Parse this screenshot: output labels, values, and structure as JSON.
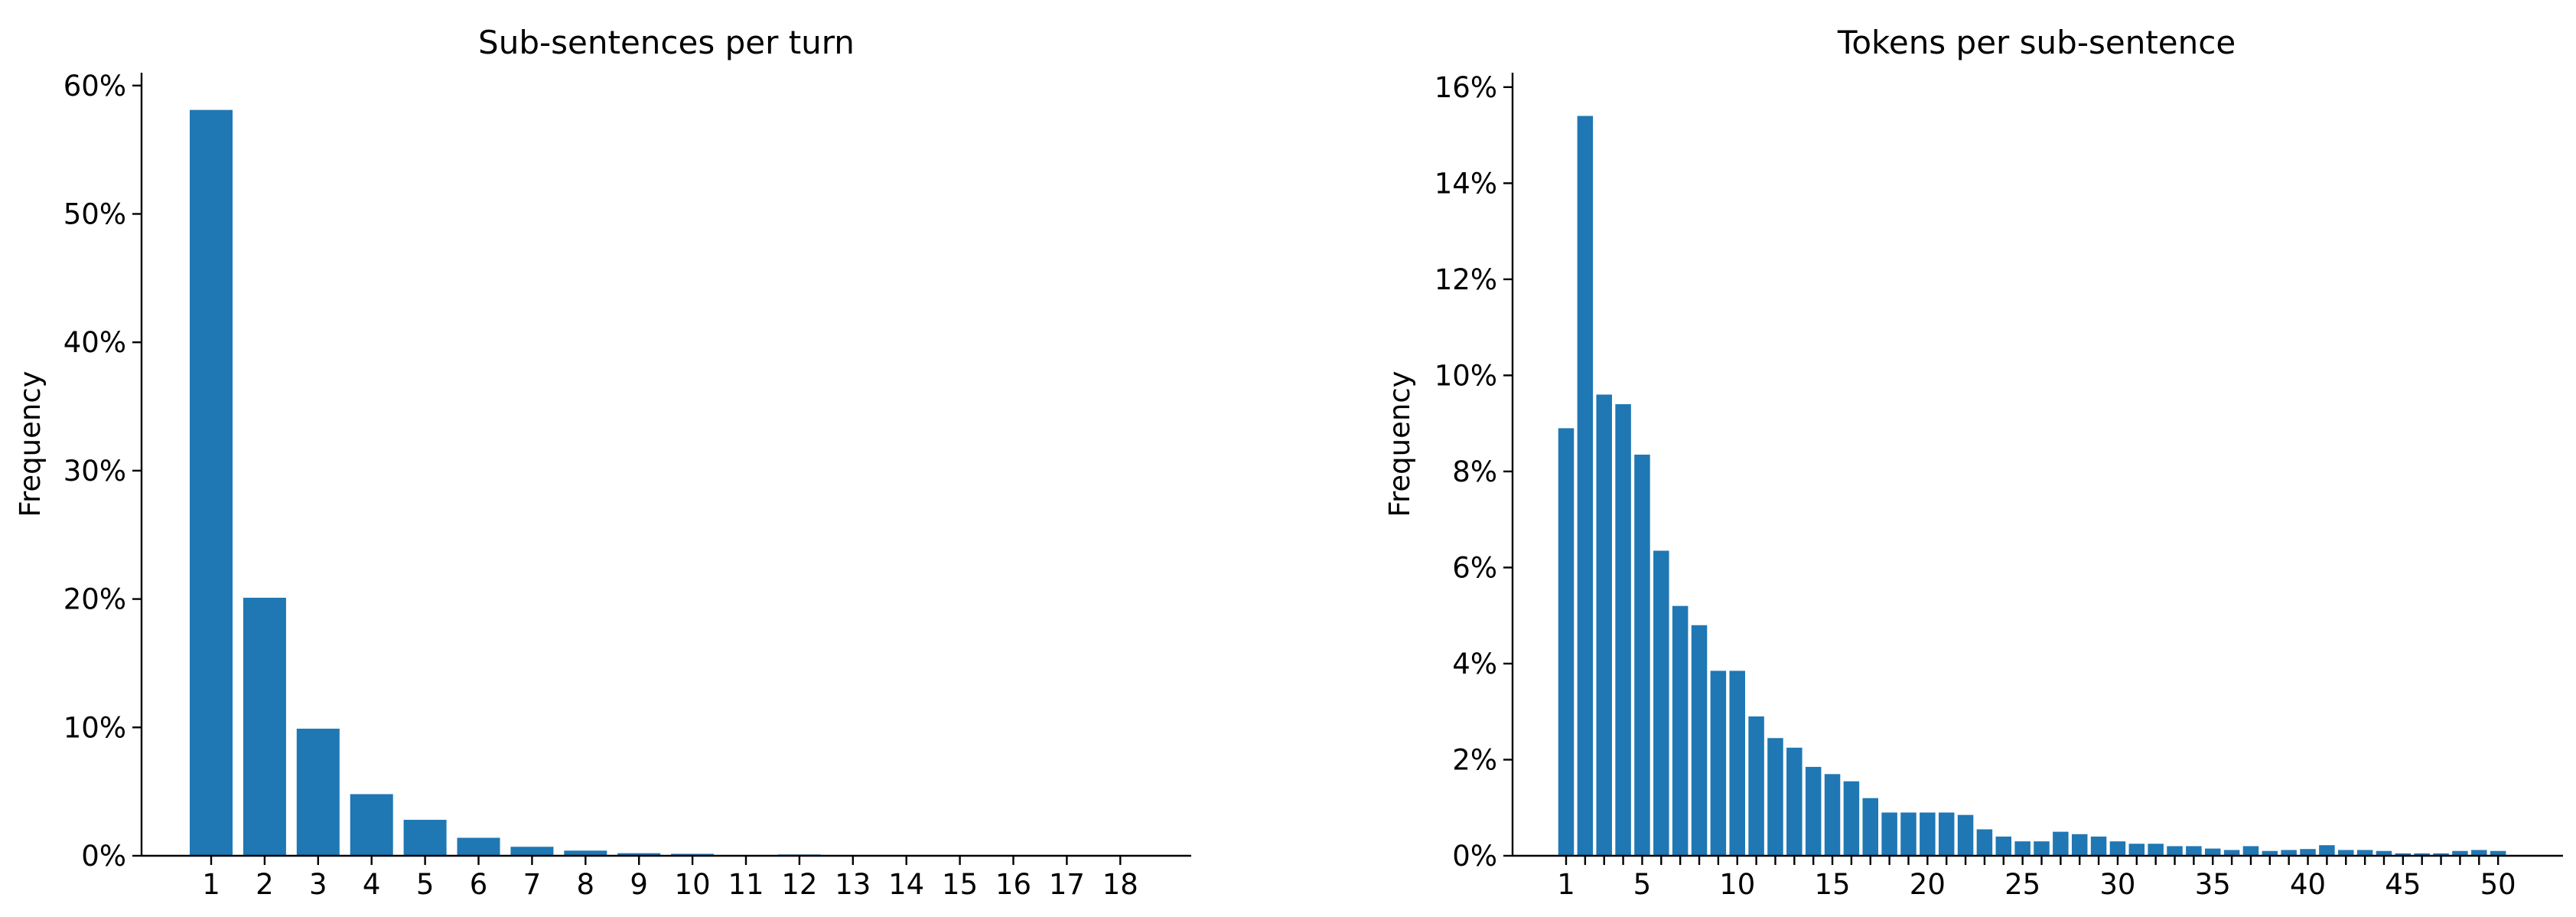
{
  "chart_data": [
    {
      "type": "bar",
      "title": "Sub-sentences per turn",
      "xlabel": "",
      "ylabel": "Frequency",
      "x": [
        1,
        2,
        3,
        4,
        5,
        6,
        7,
        8,
        9,
        10,
        11,
        12,
        13,
        14,
        15,
        16,
        17,
        18
      ],
      "values": [
        58.1,
        20.1,
        9.9,
        4.8,
        2.8,
        1.4,
        0.7,
        0.4,
        0.2,
        0.15,
        0.05,
        0.1,
        0.03,
        0.02,
        0.02,
        0.01,
        0.01,
        0.01
      ],
      "x_tick_labels": [
        "1",
        "2",
        "3",
        "4",
        "5",
        "6",
        "7",
        "8",
        "9",
        "10",
        "11",
        "12",
        "13",
        "14",
        "15",
        "16",
        "17",
        "18"
      ],
      "ylim": [
        0,
        61
      ],
      "y_ticks": [
        0,
        10,
        20,
        30,
        40,
        50,
        60
      ],
      "y_tick_labels": [
        "0%",
        "10%",
        "20%",
        "30%",
        "40%",
        "50%",
        "60%"
      ],
      "color": "#1f77b4",
      "grid": false
    },
    {
      "type": "bar",
      "title": "Tokens per sub-sentence",
      "xlabel": "",
      "ylabel": "Frequency",
      "x": [
        1,
        2,
        3,
        4,
        5,
        6,
        7,
        8,
        9,
        10,
        11,
        12,
        13,
        14,
        15,
        16,
        17,
        18,
        19,
        20,
        21,
        22,
        23,
        24,
        25,
        26,
        27,
        28,
        29,
        30,
        31,
        32,
        33,
        34,
        35,
        36,
        37,
        38,
        39,
        40,
        41,
        42,
        43,
        44,
        45,
        46,
        47,
        48,
        49,
        50
      ],
      "values": [
        8.9,
        15.4,
        9.6,
        9.4,
        8.35,
        6.35,
        5.2,
        4.8,
        3.85,
        3.85,
        2.9,
        2.45,
        2.25,
        1.85,
        1.7,
        1.55,
        1.2,
        0.9,
        0.9,
        0.9,
        0.9,
        0.85,
        0.55,
        0.4,
        0.3,
        0.3,
        0.5,
        0.45,
        0.4,
        0.3,
        0.25,
        0.25,
        0.2,
        0.2,
        0.15,
        0.12,
        0.2,
        0.1,
        0.12,
        0.14,
        0.22,
        0.12,
        0.12,
        0.1,
        0.05,
        0.05,
        0.05,
        0.1,
        0.12,
        0.1
      ],
      "x_ticks": [
        1,
        2,
        3,
        4,
        5,
        6,
        7,
        8,
        9,
        10,
        11,
        12,
        13,
        14,
        15,
        16,
        17,
        18,
        19,
        20,
        21,
        22,
        23,
        24,
        25,
        26,
        27,
        28,
        29,
        30,
        31,
        32,
        33,
        34,
        35,
        36,
        37,
        38,
        39,
        40,
        41,
        42,
        43,
        44,
        45,
        46,
        47,
        48,
        49,
        50
      ],
      "x_tick_labels": [
        "1",
        "",
        "",
        "",
        "5",
        "",
        "",
        "",
        "",
        "10",
        "",
        "",
        "",
        "",
        "15",
        "",
        "",
        "",
        "",
        "20",
        "",
        "",
        "",
        "",
        "25",
        "",
        "",
        "",
        "",
        "30",
        "",
        "",
        "",
        "",
        "35",
        "",
        "",
        "",
        "",
        "40",
        "",
        "",
        "",
        "",
        "45",
        "",
        "",
        "",
        "",
        "50"
      ],
      "ylim": [
        0,
        16.3
      ],
      "y_ticks": [
        0,
        2,
        4,
        6,
        8,
        10,
        12,
        14,
        16
      ],
      "y_tick_labels": [
        "0%",
        "2%",
        "4%",
        "6%",
        "8%",
        "10%",
        "12%",
        "14%",
        "16%"
      ],
      "color": "#1f77b4",
      "grid": false
    }
  ]
}
